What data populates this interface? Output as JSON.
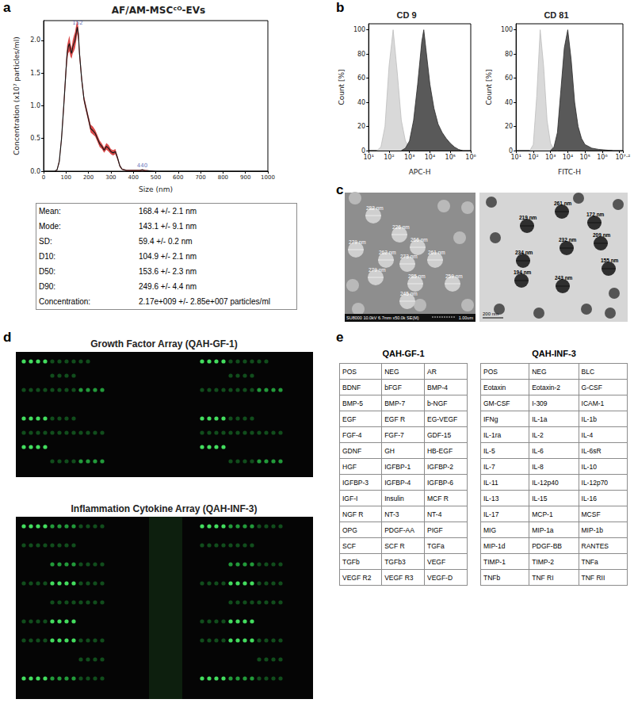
{
  "panel_labels": [
    "a",
    "b",
    "c",
    "d",
    "e"
  ],
  "chart_data": [
    {
      "type": "line",
      "title": "AF/AM-MSCᶜᴼ-EVs",
      "xlabel": "Size (nm)",
      "ylabel": "Concentration (x10⁷ particles/ml)",
      "x": [
        0,
        50,
        60,
        70,
        80,
        90,
        100,
        105,
        110,
        115,
        120,
        125,
        130,
        135,
        140,
        145,
        150,
        155,
        160,
        170,
        180,
        190,
        200,
        210,
        220,
        230,
        240,
        250,
        260,
        270,
        280,
        290,
        300,
        310,
        320,
        330,
        340,
        350,
        370,
        400,
        430,
        440,
        450,
        500,
        600,
        700,
        800,
        900,
        1000
      ],
      "values": [
        0,
        0,
        0.02,
        0.15,
        0.5,
        1.0,
        1.55,
        1.8,
        1.9,
        1.95,
        1.85,
        1.8,
        1.9,
        1.95,
        2.0,
        2.1,
        2.2,
        2.1,
        1.8,
        1.4,
        1.1,
        0.95,
        0.8,
        0.65,
        0.62,
        0.58,
        0.5,
        0.42,
        0.38,
        0.32,
        0.38,
        0.35,
        0.3,
        0.28,
        0.3,
        0.2,
        0.08,
        0.03,
        0.01,
        0.01,
        0.01,
        0.02,
        0.01,
        0,
        0,
        0,
        0,
        0,
        0
      ],
      "error": [
        0,
        0,
        0.01,
        0.03,
        0.05,
        0.08,
        0.1,
        0.12,
        0.1,
        0.12,
        0.1,
        0.08,
        0.1,
        0.12,
        0.12,
        0.12,
        0.1,
        0.1,
        0.08,
        0.06,
        0.05,
        0.05,
        0.05,
        0.06,
        0.06,
        0.05,
        0.05,
        0.05,
        0.04,
        0.04,
        0.05,
        0.05,
        0.04,
        0.04,
        0.04,
        0.03,
        0.02,
        0.01,
        0.01,
        0.01,
        0.01,
        0.01,
        0.01,
        0,
        0,
        0,
        0,
        0,
        0
      ],
      "color": "#1a1a1a",
      "annotations": [
        {
          "x": 152,
          "y": 2.2,
          "text": "152"
        },
        {
          "x": 440,
          "y": 0.02,
          "text": "440"
        }
      ],
      "xlim": [
        0,
        1000
      ],
      "xticks": [
        0,
        100,
        200,
        300,
        400,
        500,
        600,
        700,
        800,
        900,
        1000
      ],
      "ylim": [
        0,
        2.3
      ],
      "yticks": [
        {
          "value": 0,
          "label": "0.0"
        },
        0.5,
        {
          "value": 1,
          "label": "1.0"
        },
        1.5,
        {
          "value": 2,
          "label": "2.0"
        }
      ],
      "grid": false
    },
    {
      "type": "area",
      "title": "CD 9",
      "xlabel": "APC-H",
      "ylabel": "Count [%]",
      "log": "x",
      "xlim": [
        10,
        1000000
      ],
      "xticks": [
        {
          "value": 10,
          "label": "10¹"
        },
        {
          "value": 100,
          "label": "10²"
        },
        {
          "value": 1000,
          "label": "10³"
        },
        {
          "value": 10000,
          "label": "10⁴"
        },
        {
          "value": 100000,
          "label": "10⁵"
        },
        {
          "value": 1000000,
          "label": "10⁶"
        }
      ],
      "ylim": [
        0,
        105
      ],
      "yticks": [
        0,
        20,
        40,
        60,
        80,
        100
      ],
      "grid": false,
      "series": [
        {
          "color": "#d9d9d9",
          "x": [
            25.1,
            39.8,
            63.1,
            100,
            158.5,
            251.2,
            398.1,
            631,
            1000,
            1585
          ],
          "values": [
            0,
            3,
            20,
            70,
            100,
            65,
            25,
            8,
            2,
            0
          ]
        },
        {
          "color": "#595959",
          "x": [
            398.1,
            631,
            1000,
            1585,
            2512,
            3981,
            5012,
            6310,
            10000,
            15849,
            25119,
            39811,
            63096,
            100000,
            158489,
            251189,
            398107
          ],
          "values": [
            0,
            2,
            8,
            25,
            55,
            90,
            100,
            85,
            55,
            35,
            22,
            15,
            10,
            6,
            3,
            1,
            0
          ]
        }
      ]
    },
    {
      "type": "area",
      "title": "CD 81",
      "xlabel": "FITC-H",
      "ylabel": "Count [%]",
      "log": "x",
      "xlim": [
        10,
        15848932
      ],
      "xticks": [
        {
          "value": 10,
          "label": "10¹"
        },
        {
          "value": 100,
          "label": "10²"
        },
        {
          "value": 1000,
          "label": "10³"
        },
        {
          "value": 10000,
          "label": "10⁴"
        },
        {
          "value": 100000,
          "label": "10⁵"
        },
        {
          "value": 1000000,
          "label": "10⁶"
        },
        {
          "value": 15848932,
          "label": "10⁷·²"
        }
      ],
      "ylim": [
        0,
        105
      ],
      "yticks": [
        0,
        20,
        40,
        60,
        80,
        100
      ],
      "grid": false,
      "series": [
        {
          "color": "#d9d9d9",
          "x": [
            63.1,
            100,
            158.5,
            251.2,
            398.1,
            631,
            1000,
            1585,
            2512
          ],
          "values": [
            0,
            5,
            45,
            100,
            70,
            25,
            6,
            1,
            0
          ]
        },
        {
          "color": "#595959",
          "x": [
            1000,
            1585,
            2512,
            3981,
            6310,
            10000,
            15849,
            25119,
            39811,
            63096,
            100000,
            251189,
            630957,
            1584893,
            3981072
          ],
          "values": [
            0,
            3,
            15,
            50,
            85,
            100,
            75,
            40,
            20,
            10,
            5,
            2,
            1,
            0.5,
            0
          ]
        }
      ]
    }
  ],
  "nta_stats": [
    [
      "Mean:",
      "168.4 +/- 2.1 nm"
    ],
    [
      "Mode:",
      "143.1 +/- 9.1 nm"
    ],
    [
      "SD:",
      "59.4 +/- 0.2 nm"
    ],
    [
      "D10:",
      "104.9 +/- 2.1 nm"
    ],
    [
      "D50:",
      "153.6 +/- 2.3 nm"
    ],
    [
      "D90:",
      "249.6 +/- 4.4 nm"
    ],
    [
      "Concentration:",
      "2.17e+009 +/- 2.85e+007 particles/ml"
    ]
  ],
  "microscopy": {
    "sem": {
      "labels": [
        "282 nm",
        "226 nm",
        "279 nm",
        "266 nm",
        "262 nm",
        "273 nm",
        "261 nm",
        "279 nm",
        "285 nm",
        "259 nm",
        "245 nm"
      ],
      "info": "SU8000 10.0kV 6.7mm x50.0k SE(M)",
      "scale": "1.00um"
    },
    "tem": {
      "labels": [
        "261 nm",
        "172 nm",
        "219 nm",
        "209 nm",
        "232 nm",
        "234 nm",
        "155 nm",
        "194 nm",
        "243 nm"
      ],
      "scale": "200 nm"
    }
  },
  "arrays": [
    {
      "title": "Growth Factor Array (QAH-GF-1)",
      "spots": [
        [
          3,
          3,
          3,
          3,
          1,
          1,
          1,
          1,
          1,
          1,
          0,
          0
        ],
        [
          0,
          0,
          0,
          0,
          1,
          1,
          1,
          1,
          0,
          0,
          0,
          0
        ],
        [
          1,
          1,
          1,
          1,
          1,
          1,
          1,
          1,
          2,
          2,
          2,
          2
        ],
        [
          0,
          0,
          0,
          0,
          0,
          0,
          0,
          0,
          0,
          0,
          0,
          0
        ],
        [
          3,
          3,
          3,
          3,
          1,
          1,
          1,
          1,
          0,
          0,
          0,
          0
        ],
        [
          1,
          1,
          1,
          1,
          1,
          1,
          1,
          1,
          1,
          1,
          1,
          1
        ],
        [
          3,
          3,
          3,
          3,
          0,
          0,
          0,
          0,
          0,
          0,
          0,
          0
        ],
        [
          0,
          0,
          0,
          0,
          1,
          1,
          1,
          1,
          2,
          2,
          2,
          2
        ]
      ]
    },
    {
      "title": "Inflammation Cytokine Array (QAH-INF-3)",
      "spots": [
        [
          3,
          3,
          3,
          3,
          2,
          2,
          2,
          2,
          1,
          1,
          1,
          1
        ],
        [
          1,
          1,
          1,
          1,
          1,
          1,
          1,
          1,
          0,
          0,
          0,
          0
        ],
        [
          0,
          0,
          0,
          0,
          2,
          2,
          2,
          2,
          1,
          1,
          1,
          1
        ],
        [
          1,
          1,
          1,
          1,
          3,
          3,
          3,
          3,
          1,
          1,
          1,
          1
        ],
        [
          0,
          0,
          0,
          0,
          1,
          1,
          1,
          1,
          1,
          1,
          1,
          1
        ],
        [
          1,
          1,
          1,
          1,
          3,
          3,
          3,
          3,
          0,
          0,
          0,
          0
        ],
        [
          1,
          1,
          1,
          1,
          3,
          3,
          3,
          3,
          1,
          1,
          1,
          1
        ],
        [
          0,
          0,
          0,
          0,
          0,
          0,
          0,
          0,
          1,
          1,
          1,
          1
        ],
        [
          3,
          3,
          3,
          3,
          2,
          2,
          2,
          2,
          1,
          1,
          1,
          1
        ]
      ]
    }
  ],
  "tables": [
    {
      "title": "QAH-GF-1",
      "rows": [
        [
          "POS",
          "NEG",
          "AR"
        ],
        [
          "BDNF",
          "bFGF",
          "BMP-4"
        ],
        [
          "BMP-5",
          "BMP-7",
          "b-NGF"
        ],
        [
          "EGF",
          "EGF R",
          "EG-VEGF"
        ],
        [
          "FGF-4",
          "FGF-7",
          "GDF-15"
        ],
        [
          "GDNF",
          "GH",
          "HB-EGF"
        ],
        [
          "HGF",
          "IGFBP-1",
          "IGFBP-2"
        ],
        [
          "IGFBP-3",
          "IGFBP-4",
          "IGFBP-6"
        ],
        [
          "IGF-I",
          "Insulin",
          "MCF R"
        ],
        [
          "NGF R",
          "NT-3",
          "NT-4"
        ],
        [
          "OPG",
          "PDGF-AA",
          "PIGF"
        ],
        [
          "SCF",
          "SCF R",
          "TGFa"
        ],
        [
          "TGFb",
          "TGFb3",
          "VEGF"
        ],
        [
          "VEGF R2",
          "VEGF R3",
          "VEGF-D"
        ]
      ]
    },
    {
      "title": "QAH-INF-3",
      "rows": [
        [
          "POS",
          "NEG",
          "BLC"
        ],
        [
          "Eotaxin",
          "Eotaxin-2",
          "G-CSF"
        ],
        [
          "GM-CSF",
          "I-309",
          "ICAM-1"
        ],
        [
          "IFNg",
          "IL-1a",
          "IL-1b"
        ],
        [
          "IL-1ra",
          "IL-2",
          "IL-4"
        ],
        [
          "IL-5",
          "IL-6",
          "IL-6sR"
        ],
        [
          "IL-7",
          "IL-8",
          "IL-10"
        ],
        [
          "IL-11",
          "IL-12p40",
          "IL-12p70"
        ],
        [
          "IL-13",
          "IL-15",
          "IL-16"
        ],
        [
          "IL-17",
          "MCP-1",
          "MCSF"
        ],
        [
          "MIG",
          "MIP-1a",
          "MIP-1b"
        ],
        [
          "MIP-1d",
          "PDGF-BB",
          "RANTES"
        ],
        [
          "TIMP-1",
          "TIMP-2",
          "TNFa"
        ],
        [
          "TNFb",
          "TNF RI",
          "TNF RII"
        ]
      ]
    }
  ]
}
